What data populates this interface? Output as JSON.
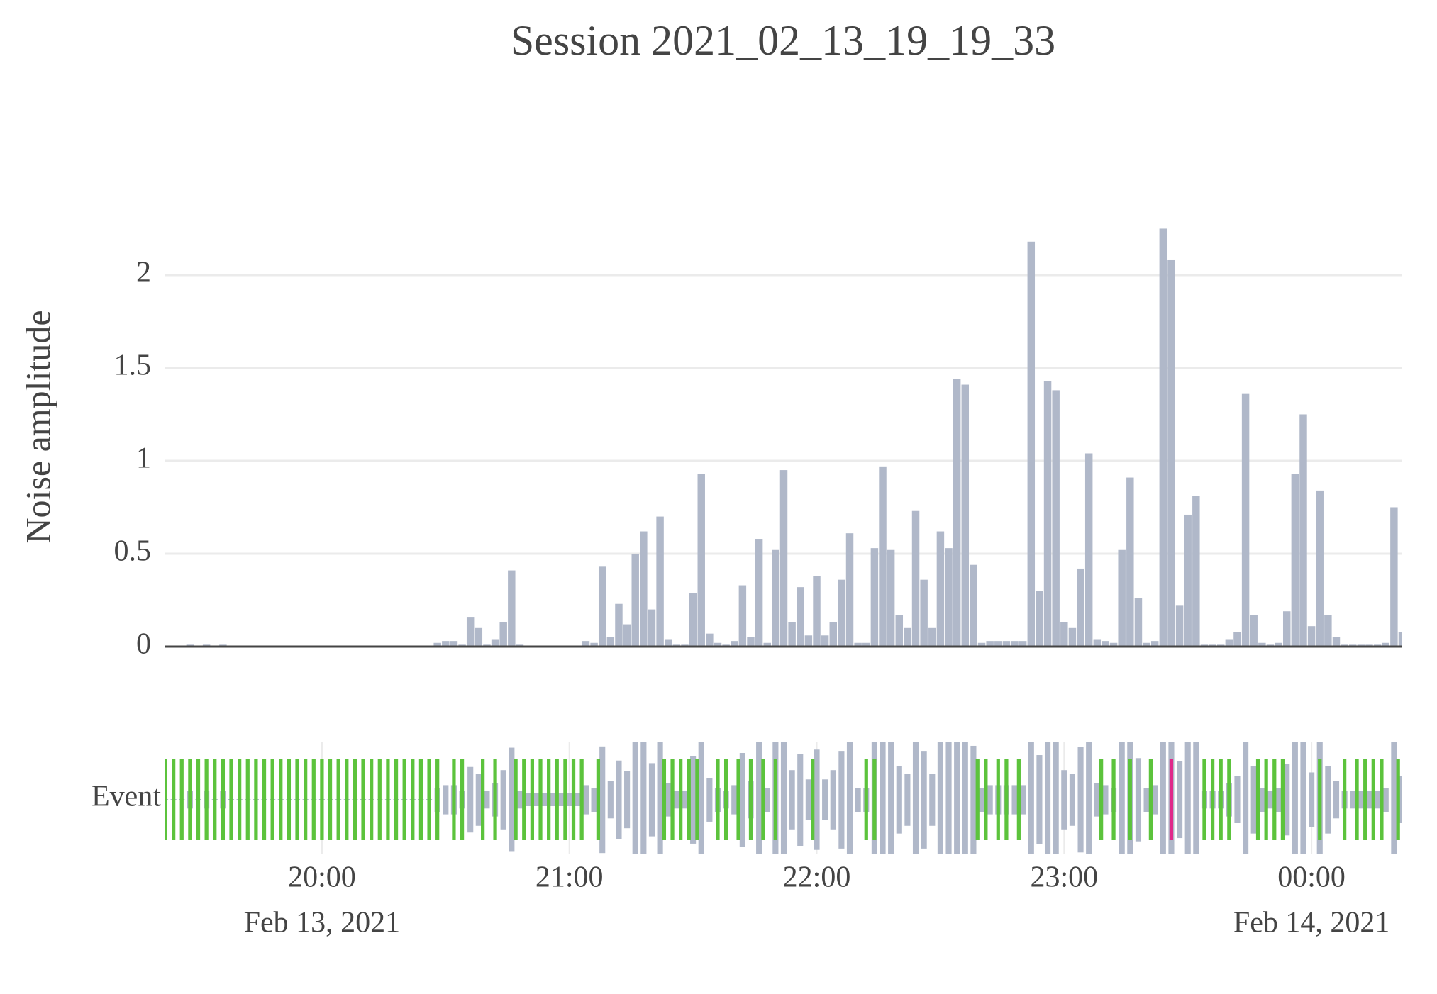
{
  "chart_data": {
    "type": "bar",
    "title": "Session 2021_02_13_19_19_33",
    "ylabel": "Noise amplitude",
    "color": "#b0b8c9",
    "grid": true,
    "xlim": [
      "2021-02-13 19:22",
      "2021-02-14 00:22"
    ],
    "ylim": [
      0,
      2.37
    ],
    "yticks": [
      0,
      0.5,
      1,
      1.5,
      2
    ],
    "xticks": [
      {
        "value": "2021-02-13 20:00",
        "label": "20:00"
      },
      {
        "value": "2021-02-13 21:00",
        "label": "21:00"
      },
      {
        "value": "2021-02-13 22:00",
        "label": "22:00"
      },
      {
        "value": "2021-02-13 23:00",
        "label": "23:00"
      },
      {
        "value": "2021-02-14 00:00",
        "label": "00:00"
      }
    ],
    "xtick_dates": [
      {
        "value": "2021-02-13 20:00",
        "label": "Feb 13, 2021"
      },
      {
        "value": "2021-02-14 00:00",
        "label": "Feb 14, 2021"
      }
    ],
    "x": [
      "2021-02-13 19:21",
      "2021-02-13 19:23",
      "2021-02-13 19:25",
      "2021-02-13 19:27",
      "2021-02-13 19:29",
      "2021-02-13 19:31",
      "2021-02-13 19:33",
      "2021-02-13 19:35",
      "2021-02-13 19:37",
      "2021-02-13 19:39",
      "2021-02-13 19:41",
      "2021-02-13 19:43",
      "2021-02-13 19:45",
      "2021-02-13 19:47",
      "2021-02-13 19:49",
      "2021-02-13 19:51",
      "2021-02-13 19:53",
      "2021-02-13 19:55",
      "2021-02-13 19:57",
      "2021-02-13 19:59",
      "2021-02-13 20:01",
      "2021-02-13 20:03",
      "2021-02-13 20:05",
      "2021-02-13 20:07",
      "2021-02-13 20:09",
      "2021-02-13 20:11",
      "2021-02-13 20:13",
      "2021-02-13 20:15",
      "2021-02-13 20:17",
      "2021-02-13 20:19",
      "2021-02-13 20:21",
      "2021-02-13 20:23",
      "2021-02-13 20:25",
      "2021-02-13 20:27",
      "2021-02-13 20:29",
      "2021-02-13 20:31",
      "2021-02-13 20:33",
      "2021-02-13 20:35",
      "2021-02-13 20:37",
      "2021-02-13 20:39",
      "2021-02-13 20:41",
      "2021-02-13 20:43",
      "2021-02-13 20:45",
      "2021-02-13 20:47",
      "2021-02-13 20:49",
      "2021-02-13 20:51",
      "2021-02-13 20:53",
      "2021-02-13 20:55",
      "2021-02-13 20:57",
      "2021-02-13 20:59",
      "2021-02-13 21:01",
      "2021-02-13 21:03",
      "2021-02-13 21:05",
      "2021-02-13 21:07",
      "2021-02-13 21:09",
      "2021-02-13 21:11",
      "2021-02-13 21:13",
      "2021-02-13 21:15",
      "2021-02-13 21:17",
      "2021-02-13 21:19",
      "2021-02-13 21:21",
      "2021-02-13 21:23",
      "2021-02-13 21:25",
      "2021-02-13 21:27",
      "2021-02-13 21:29",
      "2021-02-13 21:31",
      "2021-02-13 21:33",
      "2021-02-13 21:35",
      "2021-02-13 21:37",
      "2021-02-13 21:39",
      "2021-02-13 21:41",
      "2021-02-13 21:43",
      "2021-02-13 21:45",
      "2021-02-13 21:47",
      "2021-02-13 21:49",
      "2021-02-13 21:51",
      "2021-02-13 21:53",
      "2021-02-13 21:55",
      "2021-02-13 21:57",
      "2021-02-13 21:59",
      "2021-02-13 22:01",
      "2021-02-13 22:03",
      "2021-02-13 22:05",
      "2021-02-13 22:07",
      "2021-02-13 22:09",
      "2021-02-13 22:11",
      "2021-02-13 22:13",
      "2021-02-13 22:15",
      "2021-02-13 22:17",
      "2021-02-13 22:19",
      "2021-02-13 22:21",
      "2021-02-13 22:23",
      "2021-02-13 22:25",
      "2021-02-13 22:27",
      "2021-02-13 22:29",
      "2021-02-13 22:31",
      "2021-02-13 22:33",
      "2021-02-13 22:35",
      "2021-02-13 22:37",
      "2021-02-13 22:39",
      "2021-02-13 22:41",
      "2021-02-13 22:43",
      "2021-02-13 22:45",
      "2021-02-13 22:47",
      "2021-02-13 22:49",
      "2021-02-13 22:51",
      "2021-02-13 22:53",
      "2021-02-13 22:55",
      "2021-02-13 22:57",
      "2021-02-13 22:59",
      "2021-02-13 23:01",
      "2021-02-13 23:03",
      "2021-02-13 23:05",
      "2021-02-13 23:07",
      "2021-02-13 23:09",
      "2021-02-13 23:11",
      "2021-02-13 23:13",
      "2021-02-13 23:15",
      "2021-02-13 23:17",
      "2021-02-13 23:19",
      "2021-02-13 23:21",
      "2021-02-13 23:23",
      "2021-02-13 23:25",
      "2021-02-13 23:27",
      "2021-02-13 23:29",
      "2021-02-13 23:31",
      "2021-02-13 23:33",
      "2021-02-13 23:35",
      "2021-02-13 23:37",
      "2021-02-13 23:39",
      "2021-02-13 23:41",
      "2021-02-13 23:43",
      "2021-02-13 23:45",
      "2021-02-13 23:47",
      "2021-02-13 23:49",
      "2021-02-13 23:51",
      "2021-02-13 23:53",
      "2021-02-13 23:55",
      "2021-02-13 23:57",
      "2021-02-13 23:59",
      "2021-02-14 00:01",
      "2021-02-14 00:03",
      "2021-02-14 00:05",
      "2021-02-14 00:07",
      "2021-02-14 00:09",
      "2021-02-14 00:11",
      "2021-02-14 00:13",
      "2021-02-14 00:15",
      "2021-02-14 00:17",
      "2021-02-14 00:19",
      "2021-02-14 00:21"
    ],
    "values": [
      0,
      0,
      0,
      0.01,
      0,
      0.01,
      0,
      0.01,
      0,
      0,
      0,
      0,
      0,
      0,
      0,
      0,
      0,
      0,
      0,
      0,
      0,
      0,
      0,
      0,
      0,
      0,
      0,
      0,
      0,
      0,
      0,
      0,
      0,
      0.02,
      0.03,
      0.03,
      0.01,
      0.16,
      0.1,
      0.01,
      0.04,
      0.13,
      0.41,
      0.01,
      0.005,
      0.005,
      0.005,
      0.005,
      0.005,
      0.005,
      0.005,
      0.03,
      0.02,
      0.43,
      0.05,
      0.23,
      0.12,
      0.5,
      0.62,
      0.2,
      0.7,
      0.04,
      0.01,
      0.01,
      0.29,
      0.93,
      0.07,
      0.02,
      0.01,
      0.03,
      0.33,
      0.05,
      0.58,
      0.02,
      0.52,
      0.95,
      0.13,
      0.32,
      0.06,
      0.38,
      0.06,
      0.13,
      0.36,
      0.61,
      0.02,
      0.02,
      0.53,
      0.97,
      0.52,
      0.17,
      0.1,
      0.73,
      0.36,
      0.1,
      0.62,
      0.53,
      1.44,
      1.41,
      0.44,
      0.02,
      0.03,
      0.03,
      0.03,
      0.03,
      0.03,
      2.18,
      0.3,
      1.43,
      1.38,
      0.13,
      0.1,
      0.42,
      1.04,
      0.04,
      0.03,
      0.02,
      0.52,
      0.91,
      0.26,
      0.02,
      0.03,
      2.25,
      2.08,
      0.22,
      0.71,
      0.81,
      0.01,
      0.01,
      0.01,
      0.04,
      0.08,
      1.36,
      0.17,
      0.02,
      0.01,
      0.02,
      0.19,
      0.93,
      1.25,
      0.11,
      0.84,
      0.17,
      0.05,
      0.01,
      0.01,
      0.01,
      0.01,
      0.01,
      0.02,
      0.75,
      0.08
    ],
    "events": {
      "label": "Event",
      "color": "#5cc33c",
      "x": [
        "2021-02-13 19:22",
        "2021-02-13 19:24",
        "2021-02-13 19:26",
        "2021-02-13 19:28",
        "2021-02-13 19:30",
        "2021-02-13 19:32",
        "2021-02-13 19:34",
        "2021-02-13 19:36",
        "2021-02-13 19:38",
        "2021-02-13 19:40",
        "2021-02-13 19:42",
        "2021-02-13 19:44",
        "2021-02-13 19:46",
        "2021-02-13 19:48",
        "2021-02-13 19:50",
        "2021-02-13 19:52",
        "2021-02-13 19:54",
        "2021-02-13 19:56",
        "2021-02-13 19:58",
        "2021-02-13 20:00",
        "2021-02-13 20:02",
        "2021-02-13 20:04",
        "2021-02-13 20:06",
        "2021-02-13 20:08",
        "2021-02-13 20:10",
        "2021-02-13 20:12",
        "2021-02-13 20:14",
        "2021-02-13 20:16",
        "2021-02-13 20:18",
        "2021-02-13 20:20",
        "2021-02-13 20:22",
        "2021-02-13 20:24",
        "2021-02-13 20:26",
        "2021-02-13 20:28",
        "2021-02-13 20:32",
        "2021-02-13 20:34",
        "2021-02-13 20:39",
        "2021-02-13 20:42",
        "2021-02-13 20:47",
        "2021-02-13 20:49",
        "2021-02-13 20:51",
        "2021-02-13 20:53",
        "2021-02-13 20:55",
        "2021-02-13 20:57",
        "2021-02-13 20:59",
        "2021-02-13 21:01",
        "2021-02-13 21:03",
        "2021-02-13 21:07",
        "2021-02-13 21:23",
        "2021-02-13 21:25",
        "2021-02-13 21:27",
        "2021-02-13 21:29",
        "2021-02-13 21:31",
        "2021-02-13 21:36",
        "2021-02-13 21:38",
        "2021-02-13 21:41",
        "2021-02-13 21:44",
        "2021-02-13 21:47",
        "2021-02-13 21:50",
        "2021-02-13 21:59",
        "2021-02-13 22:12",
        "2021-02-13 22:14",
        "2021-02-13 22:39",
        "2021-02-13 22:41",
        "2021-02-13 22:44",
        "2021-02-13 22:46",
        "2021-02-13 22:49",
        "2021-02-13 23:09",
        "2021-02-13 23:12",
        "2021-02-13 23:16",
        "2021-02-13 23:21",
        "2021-02-13 23:34",
        "2021-02-13 23:36",
        "2021-02-13 23:38",
        "2021-02-13 23:40",
        "2021-02-13 23:47",
        "2021-02-13 23:49",
        "2021-02-13 23:51",
        "2021-02-13 23:53",
        "2021-02-14 00:02",
        "2021-02-14 00:08",
        "2021-02-14 00:11",
        "2021-02-14 00:13",
        "2021-02-14 00:15",
        "2021-02-14 00:17",
        "2021-02-14 00:21"
      ]
    },
    "alarm": {
      "color": "#e0288a",
      "x": [
        "2021-02-13 23:26"
      ]
    }
  }
}
